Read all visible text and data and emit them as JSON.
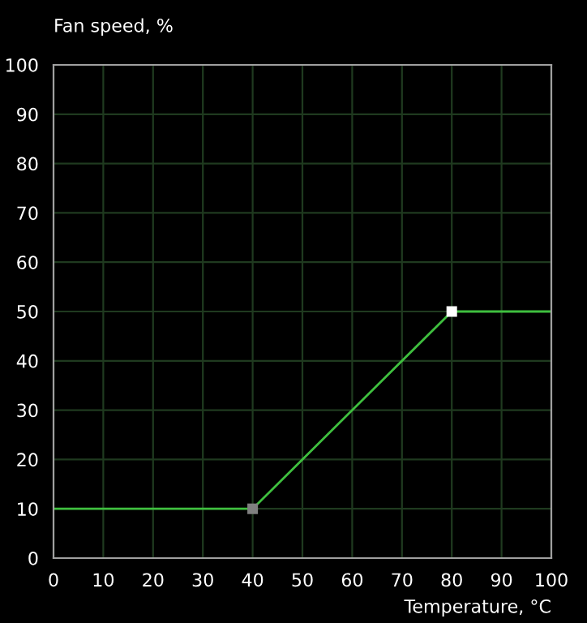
{
  "chart_data": {
    "type": "line",
    "xlabel": "Temperature, °C",
    "ylabel": "Fan speed, %",
    "series": [
      {
        "color": "#3fbf3f",
        "x": [
          0,
          40,
          80,
          100
        ],
        "values": [
          10,
          10,
          50,
          50
        ],
        "marker": "none"
      },
      {
        "type": "scatter",
        "colors": [
          "#808080",
          "#ffffff"
        ],
        "x": [
          40,
          80
        ],
        "values": [
          10,
          50
        ],
        "marker": "square"
      }
    ],
    "xlim": [
      0,
      100
    ],
    "ylim": [
      0,
      100
    ],
    "xticks": [
      0,
      10,
      20,
      30,
      40,
      50,
      60,
      70,
      80,
      90,
      100
    ],
    "yticks": [
      0,
      10,
      20,
      30,
      40,
      50,
      60,
      70,
      80,
      90,
      100
    ],
    "grid": true,
    "legend": false
  }
}
